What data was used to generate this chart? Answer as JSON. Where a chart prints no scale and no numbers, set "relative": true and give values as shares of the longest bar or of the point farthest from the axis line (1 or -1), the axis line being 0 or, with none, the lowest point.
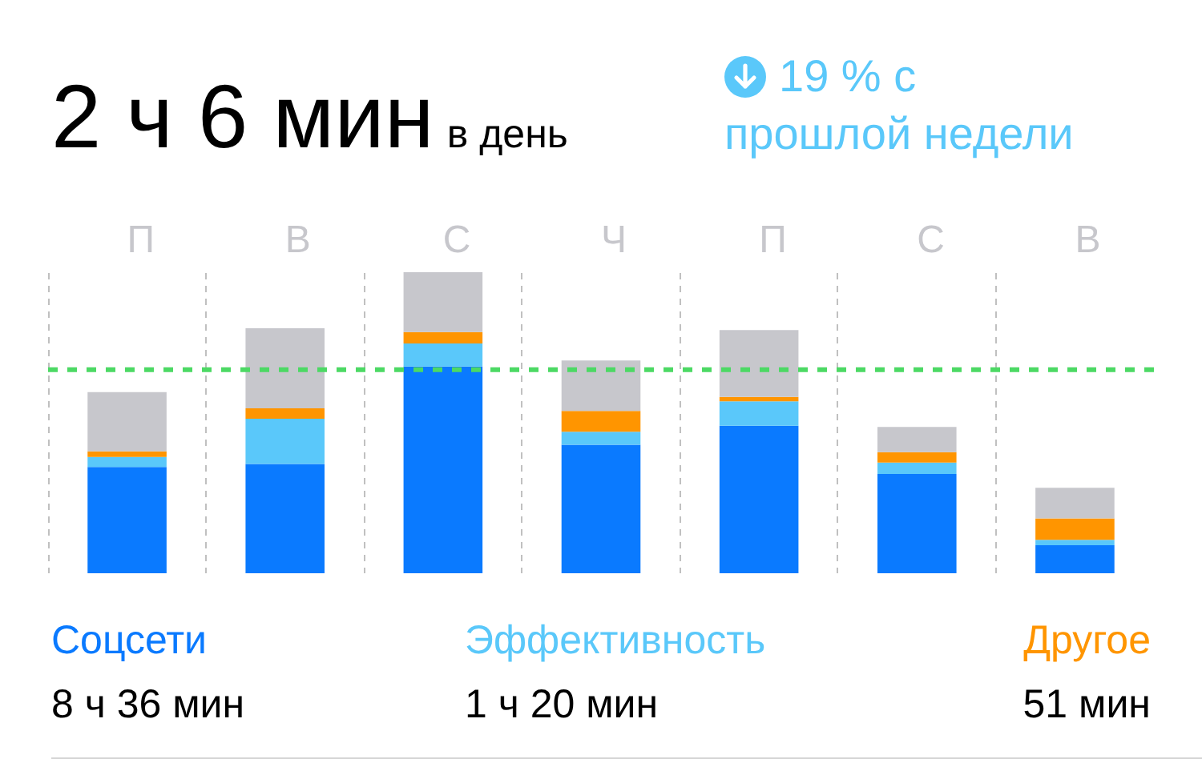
{
  "chart_data": {
    "type": "bar",
    "title": "2 ч 6 мин",
    "subtitle": "в день",
    "relative": true,
    "stacked": true,
    "grid": "x",
    "legend": "bottom",
    "categories": [
      "П",
      "В",
      "С",
      "Ч",
      "П",
      "С",
      "В"
    ],
    "series": [
      {
        "name": "Соцсети",
        "color": "#0a7aff",
        "values": [
          0.353,
          0.363,
          0.687,
          0.427,
          0.49,
          0.33,
          0.093
        ]
      },
      {
        "name": "Эффективность",
        "color": "#5ac8fa",
        "values": [
          0.033,
          0.15,
          0.076,
          0.043,
          0.081,
          0.038,
          0.018
        ]
      },
      {
        "name": "Другое",
        "color": "#ff9500",
        "values": [
          0.019,
          0.035,
          0.038,
          0.069,
          0.015,
          0.034,
          0.071
        ]
      },
      {
        "color": "#c7c7cc",
        "values": [
          0.197,
          0.266,
          0.199,
          0.168,
          0.222,
          0.084,
          0.102
        ]
      }
    ],
    "ref_lines": [
      {
        "axis": "y",
        "value": 0.676,
        "color": "#4cd964",
        "line_style": "dashed"
      }
    ],
    "annotations": [
      "19 % с прошлой недели",
      "8 ч 36 мин",
      "1 ч 20 мин",
      "51 мин"
    ]
  }
}
